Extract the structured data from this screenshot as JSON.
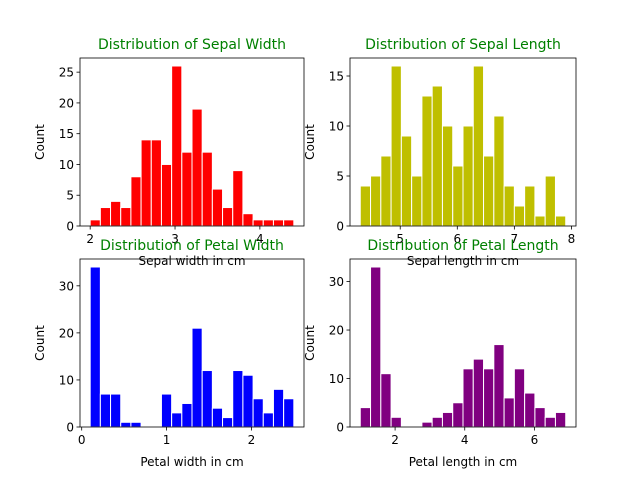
{
  "chart_data": [
    {
      "type": "bar",
      "title": "Distribution of Sepal Width",
      "xlabel": "Sepal width in cm",
      "ylabel": "Count",
      "color": "#ff0000",
      "title_color": "#008000",
      "xlim": [
        1.88,
        4.52
      ],
      "ylim": [
        0,
        27.3
      ],
      "xticks": [
        2,
        3,
        4
      ],
      "yticks": [
        0,
        5,
        10,
        15,
        20,
        25
      ],
      "bin_start": 2.0,
      "bin_width": 0.12,
      "values": [
        1,
        3,
        4,
        3,
        8,
        14,
        14,
        10,
        26,
        12,
        19,
        12,
        6,
        3,
        9,
        2,
        1,
        1,
        1,
        1
      ]
    },
    {
      "type": "bar",
      "title": "Distribution of Sepal Length",
      "xlabel": "Sepal length in cm",
      "ylabel": "Count",
      "color": "#bfbf00",
      "title_color": "#008000",
      "xlim": [
        4.12,
        8.08
      ],
      "ylim": [
        0,
        16.8
      ],
      "xticks": [
        5,
        6,
        7,
        8
      ],
      "yticks": [
        0,
        5,
        10,
        15
      ],
      "bin_start": 4.3,
      "bin_width": 0.18,
      "values": [
        4,
        5,
        7,
        16,
        9,
        5,
        13,
        14,
        10,
        6,
        10,
        16,
        7,
        11,
        4,
        2,
        4,
        1,
        5,
        1
      ]
    },
    {
      "type": "bar",
      "title": "Distribution of Petal Width",
      "xlabel": "Petal width in cm",
      "ylabel": "Count",
      "color": "#0000ff",
      "title_color": "#008000",
      "xlim": [
        -0.02,
        2.62
      ],
      "ylim": [
        0,
        35.7
      ],
      "xticks": [
        0,
        1,
        2
      ],
      "yticks": [
        0,
        10,
        20,
        30
      ],
      "bin_start": 0.1,
      "bin_width": 0.12,
      "values": [
        34,
        7,
        7,
        1,
        1,
        0,
        0,
        7,
        3,
        5,
        21,
        12,
        4,
        2,
        12,
        11,
        6,
        3,
        8,
        6
      ]
    },
    {
      "type": "bar",
      "title": "Distribution of Petal Length",
      "xlabel": "Petal length in cm",
      "ylabel": "Count",
      "color": "#800080",
      "title_color": "#008000",
      "xlim": [
        0.705,
        7.195
      ],
      "ylim": [
        0,
        34.65
      ],
      "xticks": [
        2,
        4,
        6
      ],
      "yticks": [
        0,
        10,
        20,
        30
      ],
      "bin_start": 1.0,
      "bin_width": 0.295,
      "values": [
        4,
        33,
        11,
        2,
        0,
        0,
        1,
        2,
        3,
        5,
        12,
        14,
        12,
        17,
        6,
        12,
        7,
        4,
        2,
        3
      ]
    }
  ]
}
